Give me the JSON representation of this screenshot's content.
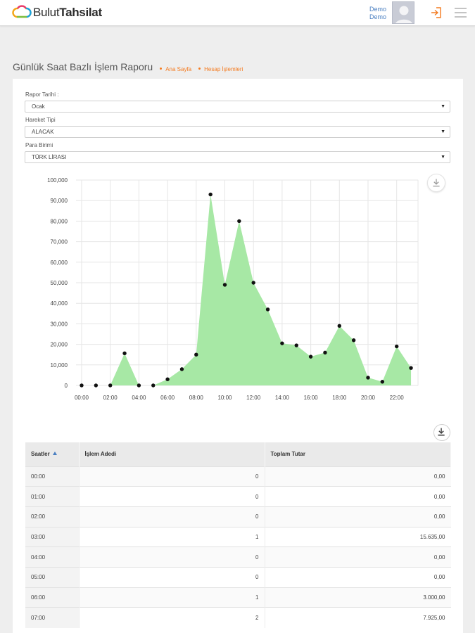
{
  "header": {
    "logo_part1": "Bulut",
    "logo_part2": "Tahsilat",
    "user_name": "Demo",
    "user_sub": "Demo"
  },
  "page": {
    "title": "Günlük Saat Bazlı İşlem Raporu",
    "breadcrumbs": [
      "Ana Sayfa",
      "Hesap İşlemleri"
    ]
  },
  "filters": [
    {
      "label": "Rapor Tarihi :",
      "value": "Ocak"
    },
    {
      "label": "Hareket Tipi",
      "value": "ALACAK"
    },
    {
      "label": "Para Birimi",
      "value": "TÜRK LİRASI"
    }
  ],
  "colors": {
    "accent": "#f47b20",
    "link": "#4a7fc1",
    "area_fill": "#a7e8a5",
    "point": "#111111"
  },
  "chart_data": {
    "type": "area",
    "x": [
      "00:00",
      "01:00",
      "02:00",
      "03:00",
      "04:00",
      "05:00",
      "06:00",
      "07:00",
      "08:00",
      "09:00",
      "10:00",
      "11:00",
      "12:00",
      "13:00",
      "14:00",
      "15:00",
      "16:00",
      "17:00",
      "18:00",
      "19:00",
      "20:00",
      "21:00",
      "22:00",
      "23:00"
    ],
    "x_tick_labels": [
      "00:00",
      "02:00",
      "04:00",
      "06:00",
      "08:00",
      "10:00",
      "12:00",
      "14:00",
      "16:00",
      "18:00",
      "20:00",
      "22:00"
    ],
    "values": [
      0,
      0,
      0,
      15635,
      0,
      0,
      3000,
      7925,
      15000,
      93000,
      49000,
      80000,
      50000,
      37000,
      20500,
      19500,
      14000,
      16000,
      29000,
      22000,
      3800,
      1800,
      19000,
      8500
    ],
    "y_ticks": [
      "0",
      "10,000",
      "20,000",
      "30,000",
      "40,000",
      "50,000",
      "60,000",
      "70,000",
      "80,000",
      "90,000",
      "100,000"
    ],
    "ylim": [
      0,
      100000
    ],
    "grid": true,
    "markers": true
  },
  "table": {
    "columns": [
      "Saatler",
      "İşlem Adedi",
      "Toplam Tutar"
    ],
    "rows": [
      {
        "hour": "00:00",
        "count": "0",
        "total": "0,00"
      },
      {
        "hour": "01:00",
        "count": "0",
        "total": "0,00"
      },
      {
        "hour": "02:00",
        "count": "0",
        "total": "0,00"
      },
      {
        "hour": "03:00",
        "count": "1",
        "total": "15.635,00"
      },
      {
        "hour": "04:00",
        "count": "0",
        "total": "0,00"
      },
      {
        "hour": "05:00",
        "count": "0",
        "total": "0,00"
      },
      {
        "hour": "06:00",
        "count": "1",
        "total": "3.000,00"
      },
      {
        "hour": "07:00",
        "count": "2",
        "total": "7.925,00"
      }
    ]
  }
}
